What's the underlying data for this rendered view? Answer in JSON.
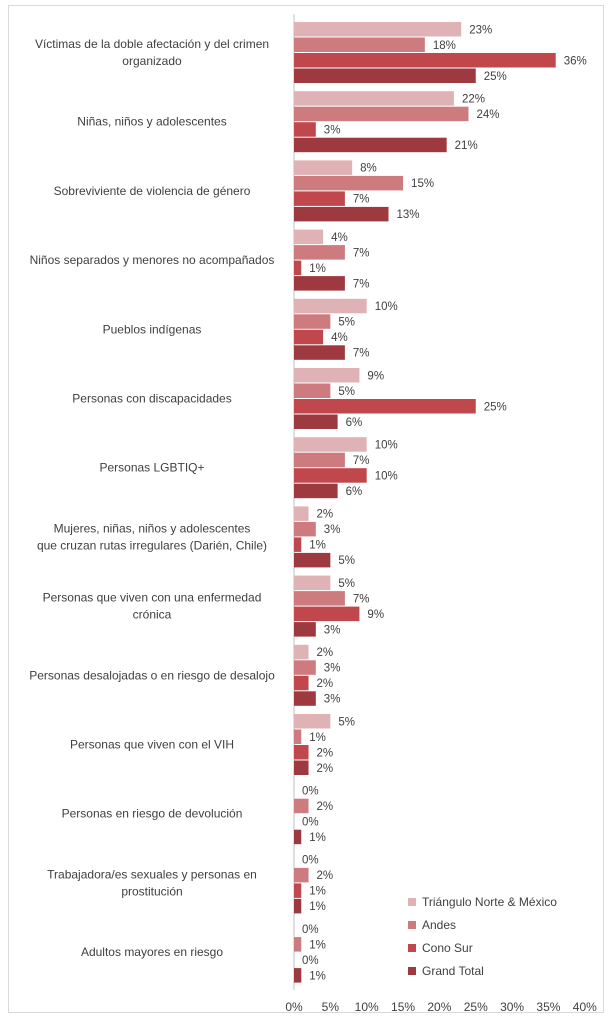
{
  "chart_data": {
    "type": "bar",
    "orientation": "horizontal",
    "categories": [
      "Víctimas de la doble afectación y del crimen organizado",
      "Niñas, niños y adolescentes",
      "Sobreviviente de violencia de género",
      "Niños separados y menores no acompañados",
      "Pueblos indígenas",
      "Personas con discapacidades",
      "Personas LGBTIQ+",
      "Mujeres, niñas, niños y adolescentes que cruzan rutas irregulares (Darién, Chile)",
      "Personas que viven con una enfermedad crónica",
      "Personas desalojadas o en riesgo de desalojo",
      "Personas que viven con el VIH",
      "Personas en riesgo de devolución",
      "Trabajadora/es sexuales y personas en prostitución",
      "Adultos mayores en riesgo"
    ],
    "category_lines": [
      [
        "Víctimas de la doble afectación y del crimen",
        "organizado"
      ],
      [
        "Niñas, niños y adolescentes"
      ],
      [
        "Sobreviviente de violencia de género"
      ],
      [
        "Niños separados y menores no acompañados"
      ],
      [
        "Pueblos indígenas"
      ],
      [
        "Personas con discapacidades"
      ],
      [
        "Personas LGBTIQ+"
      ],
      [
        "Mujeres, niñas, niños y adolescentes",
        "que cruzan rutas irregulares (Darién, Chile)"
      ],
      [
        "Personas que viven con una enfermedad",
        "crónica"
      ],
      [
        "Personas desalojadas o en riesgo de desalojo"
      ],
      [
        "Personas que viven con el VIH"
      ],
      [
        "Personas en riesgo de devolución"
      ],
      [
        "Trabajadora/es sexuales y personas en",
        "prostitución"
      ],
      [
        "Adultos mayores en riesgo"
      ]
    ],
    "series": [
      {
        "name": "Triángulo Norte & México",
        "color": "#dfb3b5",
        "values": [
          23,
          22,
          8,
          4,
          10,
          9,
          10,
          2,
          5,
          2,
          5,
          0,
          0,
          0
        ]
      },
      {
        "name": "Andes",
        "color": "#cd7b7f",
        "values": [
          18,
          24,
          15,
          7,
          5,
          5,
          7,
          3,
          7,
          3,
          1,
          2,
          2,
          1
        ]
      },
      {
        "name": "Cono Sur",
        "color": "#c0484d",
        "values": [
          36,
          3,
          7,
          1,
          4,
          25,
          10,
          1,
          9,
          2,
          2,
          0,
          1,
          0
        ]
      },
      {
        "name": "Grand Total",
        "color": "#9e3a3f",
        "values": [
          25,
          21,
          13,
          7,
          7,
          6,
          6,
          5,
          3,
          3,
          2,
          1,
          1,
          1
        ]
      }
    ],
    "value_suffix": "%",
    "xlim": [
      0,
      40
    ],
    "xticks": [
      0,
      5,
      10,
      15,
      20,
      25,
      30,
      35,
      40
    ],
    "xtick_labels": [
      "0%",
      "5%",
      "10%",
      "15%",
      "20%",
      "25%",
      "30%",
      "35%",
      "40%"
    ],
    "grid": false,
    "legend_position": "bottom-right",
    "title": "",
    "xlabel": "",
    "ylabel": ""
  }
}
